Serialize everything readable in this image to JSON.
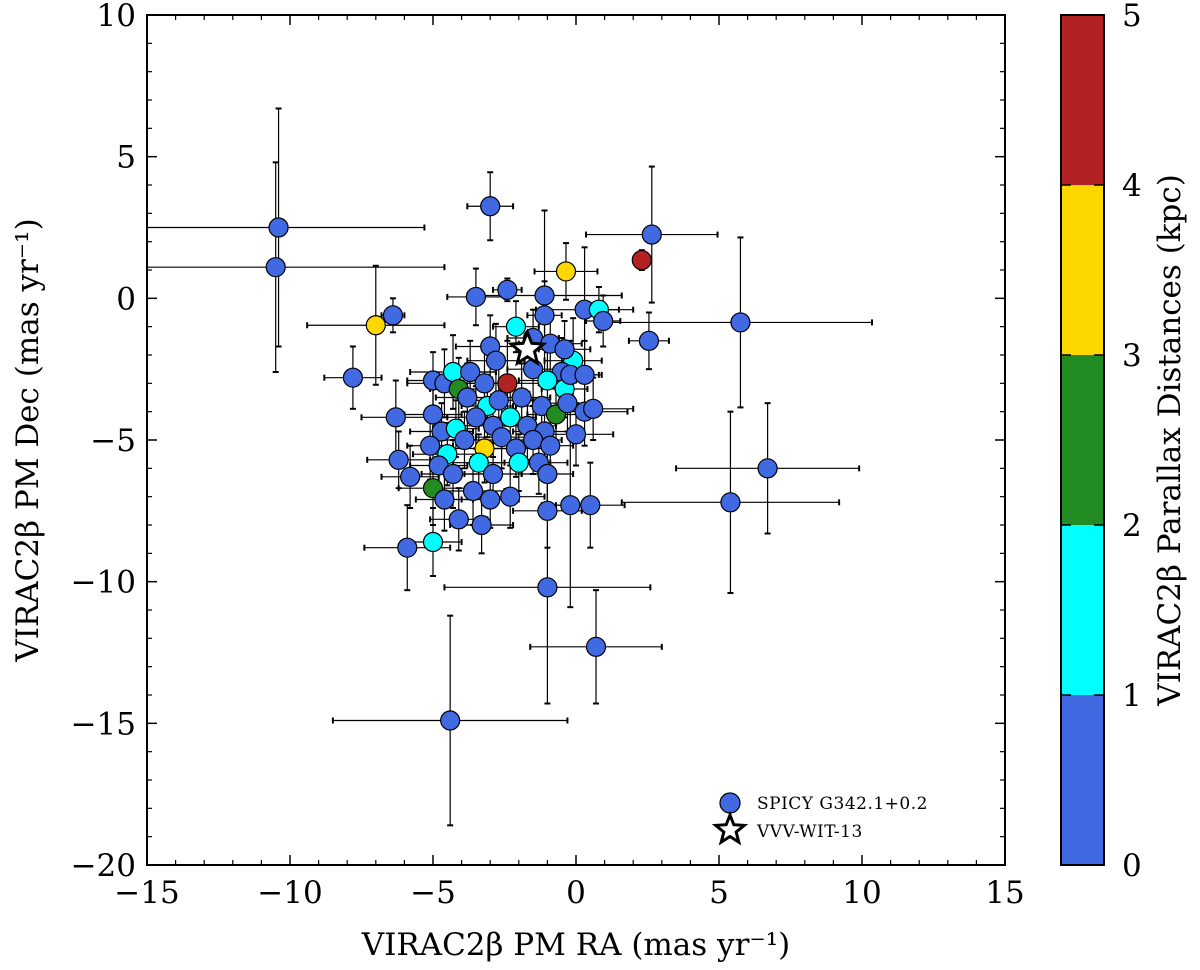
{
  "chart_data": {
    "type": "scatter",
    "xlabel": "VIRAC2β PM RA (mas yr⁻¹)",
    "ylabel": "VIRAC2β PM Dec (mas yr⁻¹)",
    "xlim": [
      -15,
      15
    ],
    "ylim": [
      -20,
      10
    ],
    "xticks": [
      -15,
      -10,
      -5,
      0,
      5,
      10,
      15
    ],
    "yticks": [
      -20,
      -15,
      -10,
      -5,
      0,
      5,
      10
    ],
    "xtick_labels": [
      "−15",
      "−10",
      "−5",
      "0",
      "5",
      "10",
      "15"
    ],
    "ytick_labels": [
      "−20",
      "−15",
      "−10",
      "−5",
      "0",
      "5",
      "10"
    ],
    "colorbar": {
      "label": "VIRAC2β Parallax Distances (kpc)",
      "range": [
        0,
        5
      ],
      "ticks": [
        "0",
        "1",
        "2",
        "3",
        "4",
        "5"
      ],
      "bins": [
        {
          "from": 0,
          "to": 1,
          "color": "#4169e1"
        },
        {
          "from": 1,
          "to": 2,
          "color": "#00ffff"
        },
        {
          "from": 2,
          "to": 3,
          "color": "#228b22"
        },
        {
          "from": 3,
          "to": 4,
          "color": "#ffd700"
        },
        {
          "from": 4,
          "to": 5,
          "color": "#b22222"
        }
      ]
    },
    "legend": {
      "placement": "bottom-right",
      "entries": [
        {
          "label": "SPICY G342.1+0.2",
          "marker": "circle",
          "color": "#4169e1"
        },
        {
          "label": "VVV-WIT-13",
          "marker": "star",
          "color": "#ffffff"
        }
      ]
    },
    "star": {
      "name": "VVV-WIT-13",
      "x": -1.7,
      "y": -1.8
    },
    "series_points": [
      {
        "x": -10.4,
        "y": 2.5,
        "ex": 5.1,
        "ey": 4.2,
        "dist": 0.5
      },
      {
        "x": -10.5,
        "y": 1.1,
        "ex": 5.9,
        "ey": 3.7,
        "dist": 0.5
      },
      {
        "x": -3.0,
        "y": 3.25,
        "ex": 0.8,
        "ey": 1.2,
        "dist": 0.5
      },
      {
        "x": 2.65,
        "y": 2.25,
        "ex": 2.3,
        "ey": 2.4,
        "dist": 0.5
      },
      {
        "x": 2.3,
        "y": 1.35,
        "ex": 0.15,
        "ey": 0.35,
        "dist": 4.5
      },
      {
        "x": -0.35,
        "y": 0.95,
        "ex": 1.1,
        "ey": 1.0,
        "dist": 3.5
      },
      {
        "x": -2.4,
        "y": 0.3,
        "ex": 0.5,
        "ey": 0.4,
        "dist": 0.5
      },
      {
        "x": -1.1,
        "y": 0.1,
        "ex": 2.7,
        "ey": 3.0,
        "dist": 0.5
      },
      {
        "x": -3.5,
        "y": 0.05,
        "ex": 1.0,
        "ey": 1.0,
        "dist": 0.5
      },
      {
        "x": 0.3,
        "y": -0.4,
        "ex": 1.7,
        "ey": 2.2,
        "dist": 0.5
      },
      {
        "x": 0.8,
        "y": -0.4,
        "ex": 0.7,
        "ey": 0.8,
        "dist": 1.5
      },
      {
        "x": 0.95,
        "y": -0.8,
        "ex": 0.6,
        "ey": 0.9,
        "dist": 0.5
      },
      {
        "x": -7.0,
        "y": -0.95,
        "ex": 2.4,
        "ey": 2.1,
        "dist": 3.5
      },
      {
        "x": -6.4,
        "y": -0.6,
        "ex": 0.4,
        "ey": 0.6,
        "dist": 0.5
      },
      {
        "x": 5.75,
        "y": -0.85,
        "ex": 4.6,
        "ey": 3.0,
        "dist": 0.5
      },
      {
        "x": 2.55,
        "y": -1.5,
        "ex": 0.7,
        "ey": 1.0,
        "dist": 0.5
      },
      {
        "x": -1.1,
        "y": -0.6,
        "ex": 0.6,
        "ey": 1.2,
        "dist": 0.5
      },
      {
        "x": -3.0,
        "y": -1.7,
        "ex": 1.2,
        "ey": 1.1,
        "dist": 0.5
      },
      {
        "x": -2.8,
        "y": -2.2,
        "ex": 1.0,
        "ey": 1.3,
        "dist": 0.5
      },
      {
        "x": -1.5,
        "y": -1.4,
        "ex": 0.9,
        "ey": 1.0,
        "dist": 0.5
      },
      {
        "x": -2.1,
        "y": -1.0,
        "ex": 0.8,
        "ey": 0.9,
        "dist": 1.5
      },
      {
        "x": -0.9,
        "y": -1.6,
        "ex": 1.1,
        "ey": 1.2,
        "dist": 0.5
      },
      {
        "x": -0.1,
        "y": -2.2,
        "ex": 1.0,
        "ey": 1.5,
        "dist": 1.5
      },
      {
        "x": -0.5,
        "y": -2.6,
        "ex": 0.8,
        "ey": 1.2,
        "dist": 0.5
      },
      {
        "x": -0.4,
        "y": -1.8,
        "ex": 0.9,
        "ey": 1.0,
        "dist": 0.5
      },
      {
        "x": -7.8,
        "y": -2.8,
        "ex": 1.0,
        "ey": 1.1,
        "dist": 0.5
      },
      {
        "x": -6.3,
        "y": -4.2,
        "ex": 1.2,
        "ey": 1.3,
        "dist": 0.5
      },
      {
        "x": -6.2,
        "y": -5.7,
        "ex": 1.1,
        "ey": 1.0,
        "dist": 0.5
      },
      {
        "x": -5.0,
        "y": -2.9,
        "ex": 0.9,
        "ey": 1.0,
        "dist": 0.5
      },
      {
        "x": -4.6,
        "y": -3.0,
        "ex": 1.3,
        "ey": 1.2,
        "dist": 0.5
      },
      {
        "x": -4.3,
        "y": -2.6,
        "ex": 1.5,
        "ey": 1.3,
        "dist": 1.5
      },
      {
        "x": -3.7,
        "y": -2.6,
        "ex": 0.9,
        "ey": 1.1,
        "dist": 0.5
      },
      {
        "x": -3.2,
        "y": -3.0,
        "ex": 1.0,
        "ey": 1.2,
        "dist": 0.5
      },
      {
        "x": -2.4,
        "y": -3.0,
        "ex": 1.1,
        "ey": 1.5,
        "dist": 4.5
      },
      {
        "x": -1.5,
        "y": -2.5,
        "ex": 0.9,
        "ey": 1.1,
        "dist": 0.5
      },
      {
        "x": -1.0,
        "y": -2.9,
        "ex": 1.0,
        "ey": 1.0,
        "dist": 1.5
      },
      {
        "x": -0.4,
        "y": -3.2,
        "ex": 0.8,
        "ey": 1.0,
        "dist": 1.5
      },
      {
        "x": -0.2,
        "y": -2.7,
        "ex": 1.1,
        "ey": 1.2,
        "dist": 0.5
      },
      {
        "x": 0.3,
        "y": -2.7,
        "ex": 0.5,
        "ey": 1.2,
        "dist": 0.5
      },
      {
        "x": -4.1,
        "y": -3.2,
        "ex": 1.0,
        "ey": 1.1,
        "dist": 2.5
      },
      {
        "x": -3.8,
        "y": -3.5,
        "ex": 1.1,
        "ey": 1.2,
        "dist": 0.5
      },
      {
        "x": -3.1,
        "y": -3.8,
        "ex": 0.9,
        "ey": 1.1,
        "dist": 1.5
      },
      {
        "x": -2.7,
        "y": -3.6,
        "ex": 1.2,
        "ey": 1.3,
        "dist": 0.5
      },
      {
        "x": -1.9,
        "y": -3.5,
        "ex": 1.0,
        "ey": 1.2,
        "dist": 0.5
      },
      {
        "x": -1.2,
        "y": -3.8,
        "ex": 0.9,
        "ey": 1.0,
        "dist": 0.5
      },
      {
        "x": -0.7,
        "y": -4.1,
        "ex": 1.0,
        "ey": 1.1,
        "dist": 2.5
      },
      {
        "x": -0.3,
        "y": -3.7,
        "ex": 0.8,
        "ey": 1.0,
        "dist": 0.5
      },
      {
        "x": 0.3,
        "y": -4.0,
        "ex": 1.5,
        "ey": 1.2,
        "dist": 0.5
      },
      {
        "x": 0.6,
        "y": -3.9,
        "ex": 1.4,
        "ey": 1.1,
        "dist": 0.5
      },
      {
        "x": -5.0,
        "y": -4.1,
        "ex": 1.0,
        "ey": 1.1,
        "dist": 0.5
      },
      {
        "x": -4.7,
        "y": -4.7,
        "ex": 1.1,
        "ey": 1.0,
        "dist": 0.5
      },
      {
        "x": -4.2,
        "y": -4.6,
        "ex": 0.8,
        "ey": 1.0,
        "dist": 1.5
      },
      {
        "x": -3.5,
        "y": -4.2,
        "ex": 1.0,
        "ey": 1.1,
        "dist": 0.5
      },
      {
        "x": -2.9,
        "y": -4.5,
        "ex": 1.2,
        "ey": 1.1,
        "dist": 0.5
      },
      {
        "x": -2.3,
        "y": -4.2,
        "ex": 0.9,
        "ey": 1.0,
        "dist": 1.5
      },
      {
        "x": -1.7,
        "y": -4.5,
        "ex": 1.0,
        "ey": 1.2,
        "dist": 0.5
      },
      {
        "x": -1.1,
        "y": -4.7,
        "ex": 1.1,
        "ey": 1.0,
        "dist": 0.5
      },
      {
        "x": 0.0,
        "y": -4.8,
        "ex": 1.3,
        "ey": 1.1,
        "dist": 0.5
      },
      {
        "x": -5.1,
        "y": -5.2,
        "ex": 0.8,
        "ey": 1.2,
        "dist": 0.5
      },
      {
        "x": -4.5,
        "y": -5.5,
        "ex": 1.2,
        "ey": 1.1,
        "dist": 1.5
      },
      {
        "x": -3.9,
        "y": -5.0,
        "ex": 1.0,
        "ey": 1.0,
        "dist": 0.5
      },
      {
        "x": -3.2,
        "y": -5.3,
        "ex": 1.1,
        "ey": 1.2,
        "dist": 3.5
      },
      {
        "x": -2.6,
        "y": -4.9,
        "ex": 0.9,
        "ey": 1.1,
        "dist": 0.5
      },
      {
        "x": -2.1,
        "y": -5.3,
        "ex": 1.1,
        "ey": 1.0,
        "dist": 0.5
      },
      {
        "x": -1.5,
        "y": -5.0,
        "ex": 1.0,
        "ey": 1.2,
        "dist": 0.5
      },
      {
        "x": -0.9,
        "y": -5.2,
        "ex": 0.8,
        "ey": 1.0,
        "dist": 0.5
      },
      {
        "x": -4.8,
        "y": -5.9,
        "ex": 1.0,
        "ey": 1.1,
        "dist": 0.5
      },
      {
        "x": -4.3,
        "y": -6.2,
        "ex": 1.1,
        "ey": 1.2,
        "dist": 0.5
      },
      {
        "x": -3.4,
        "y": -5.8,
        "ex": 0.9,
        "ey": 1.0,
        "dist": 1.5
      },
      {
        "x": -2.9,
        "y": -6.2,
        "ex": 1.0,
        "ey": 1.1,
        "dist": 0.5
      },
      {
        "x": -2.0,
        "y": -5.8,
        "ex": 1.1,
        "ey": 1.0,
        "dist": 1.5
      },
      {
        "x": -1.3,
        "y": -5.8,
        "ex": 1.0,
        "ey": 1.1,
        "dist": 0.5
      },
      {
        "x": -1.0,
        "y": -6.2,
        "ex": 0.9,
        "ey": 1.0,
        "dist": 0.5
      },
      {
        "x": -5.0,
        "y": -6.7,
        "ex": 1.2,
        "ey": 1.3,
        "dist": 2.5
      },
      {
        "x": -4.6,
        "y": -7.1,
        "ex": 1.0,
        "ey": 1.1,
        "dist": 0.5
      },
      {
        "x": -3.6,
        "y": -6.8,
        "ex": 1.1,
        "ey": 1.2,
        "dist": 0.5
      },
      {
        "x": -3.0,
        "y": -7.1,
        "ex": 1.0,
        "ey": 1.0,
        "dist": 0.5
      },
      {
        "x": -2.3,
        "y": -7.0,
        "ex": 1.2,
        "ey": 1.1,
        "dist": 0.5
      },
      {
        "x": -5.8,
        "y": -6.3,
        "ex": 1.0,
        "ey": 1.1,
        "dist": 0.5
      },
      {
        "x": -5.9,
        "y": -8.8,
        "ex": 1.5,
        "ey": 1.5,
        "dist": 0.5
      },
      {
        "x": -5.0,
        "y": -8.6,
        "ex": 1.0,
        "ey": 1.2,
        "dist": 1.5
      },
      {
        "x": -4.1,
        "y": -7.8,
        "ex": 1.0,
        "ey": 1.1,
        "dist": 0.5
      },
      {
        "x": -3.3,
        "y": -8.0,
        "ex": 1.1,
        "ey": 1.0,
        "dist": 0.5
      },
      {
        "x": -1.0,
        "y": -7.5,
        "ex": 1.2,
        "ey": 1.3,
        "dist": 0.5
      },
      {
        "x": -0.2,
        "y": -7.3,
        "ex": 1.0,
        "ey": 3.6,
        "dist": 0.5
      },
      {
        "x": 0.5,
        "y": -7.3,
        "ex": 1.2,
        "ey": 1.5,
        "dist": 0.5
      },
      {
        "x": 5.4,
        "y": -7.2,
        "ex": 3.8,
        "ey": 3.2,
        "dist": 0.5
      },
      {
        "x": 6.7,
        "y": -6.0,
        "ex": 3.2,
        "ey": 2.3,
        "dist": 0.5
      },
      {
        "x": -1.0,
        "y": -10.2,
        "ex": 3.6,
        "ey": 4.1,
        "dist": 0.5
      },
      {
        "x": 0.7,
        "y": -12.3,
        "ex": 2.3,
        "ey": 2.0,
        "dist": 0.5
      },
      {
        "x": -4.4,
        "y": -14.9,
        "ex": 4.1,
        "ey": 3.7,
        "dist": 0.5
      }
    ]
  }
}
